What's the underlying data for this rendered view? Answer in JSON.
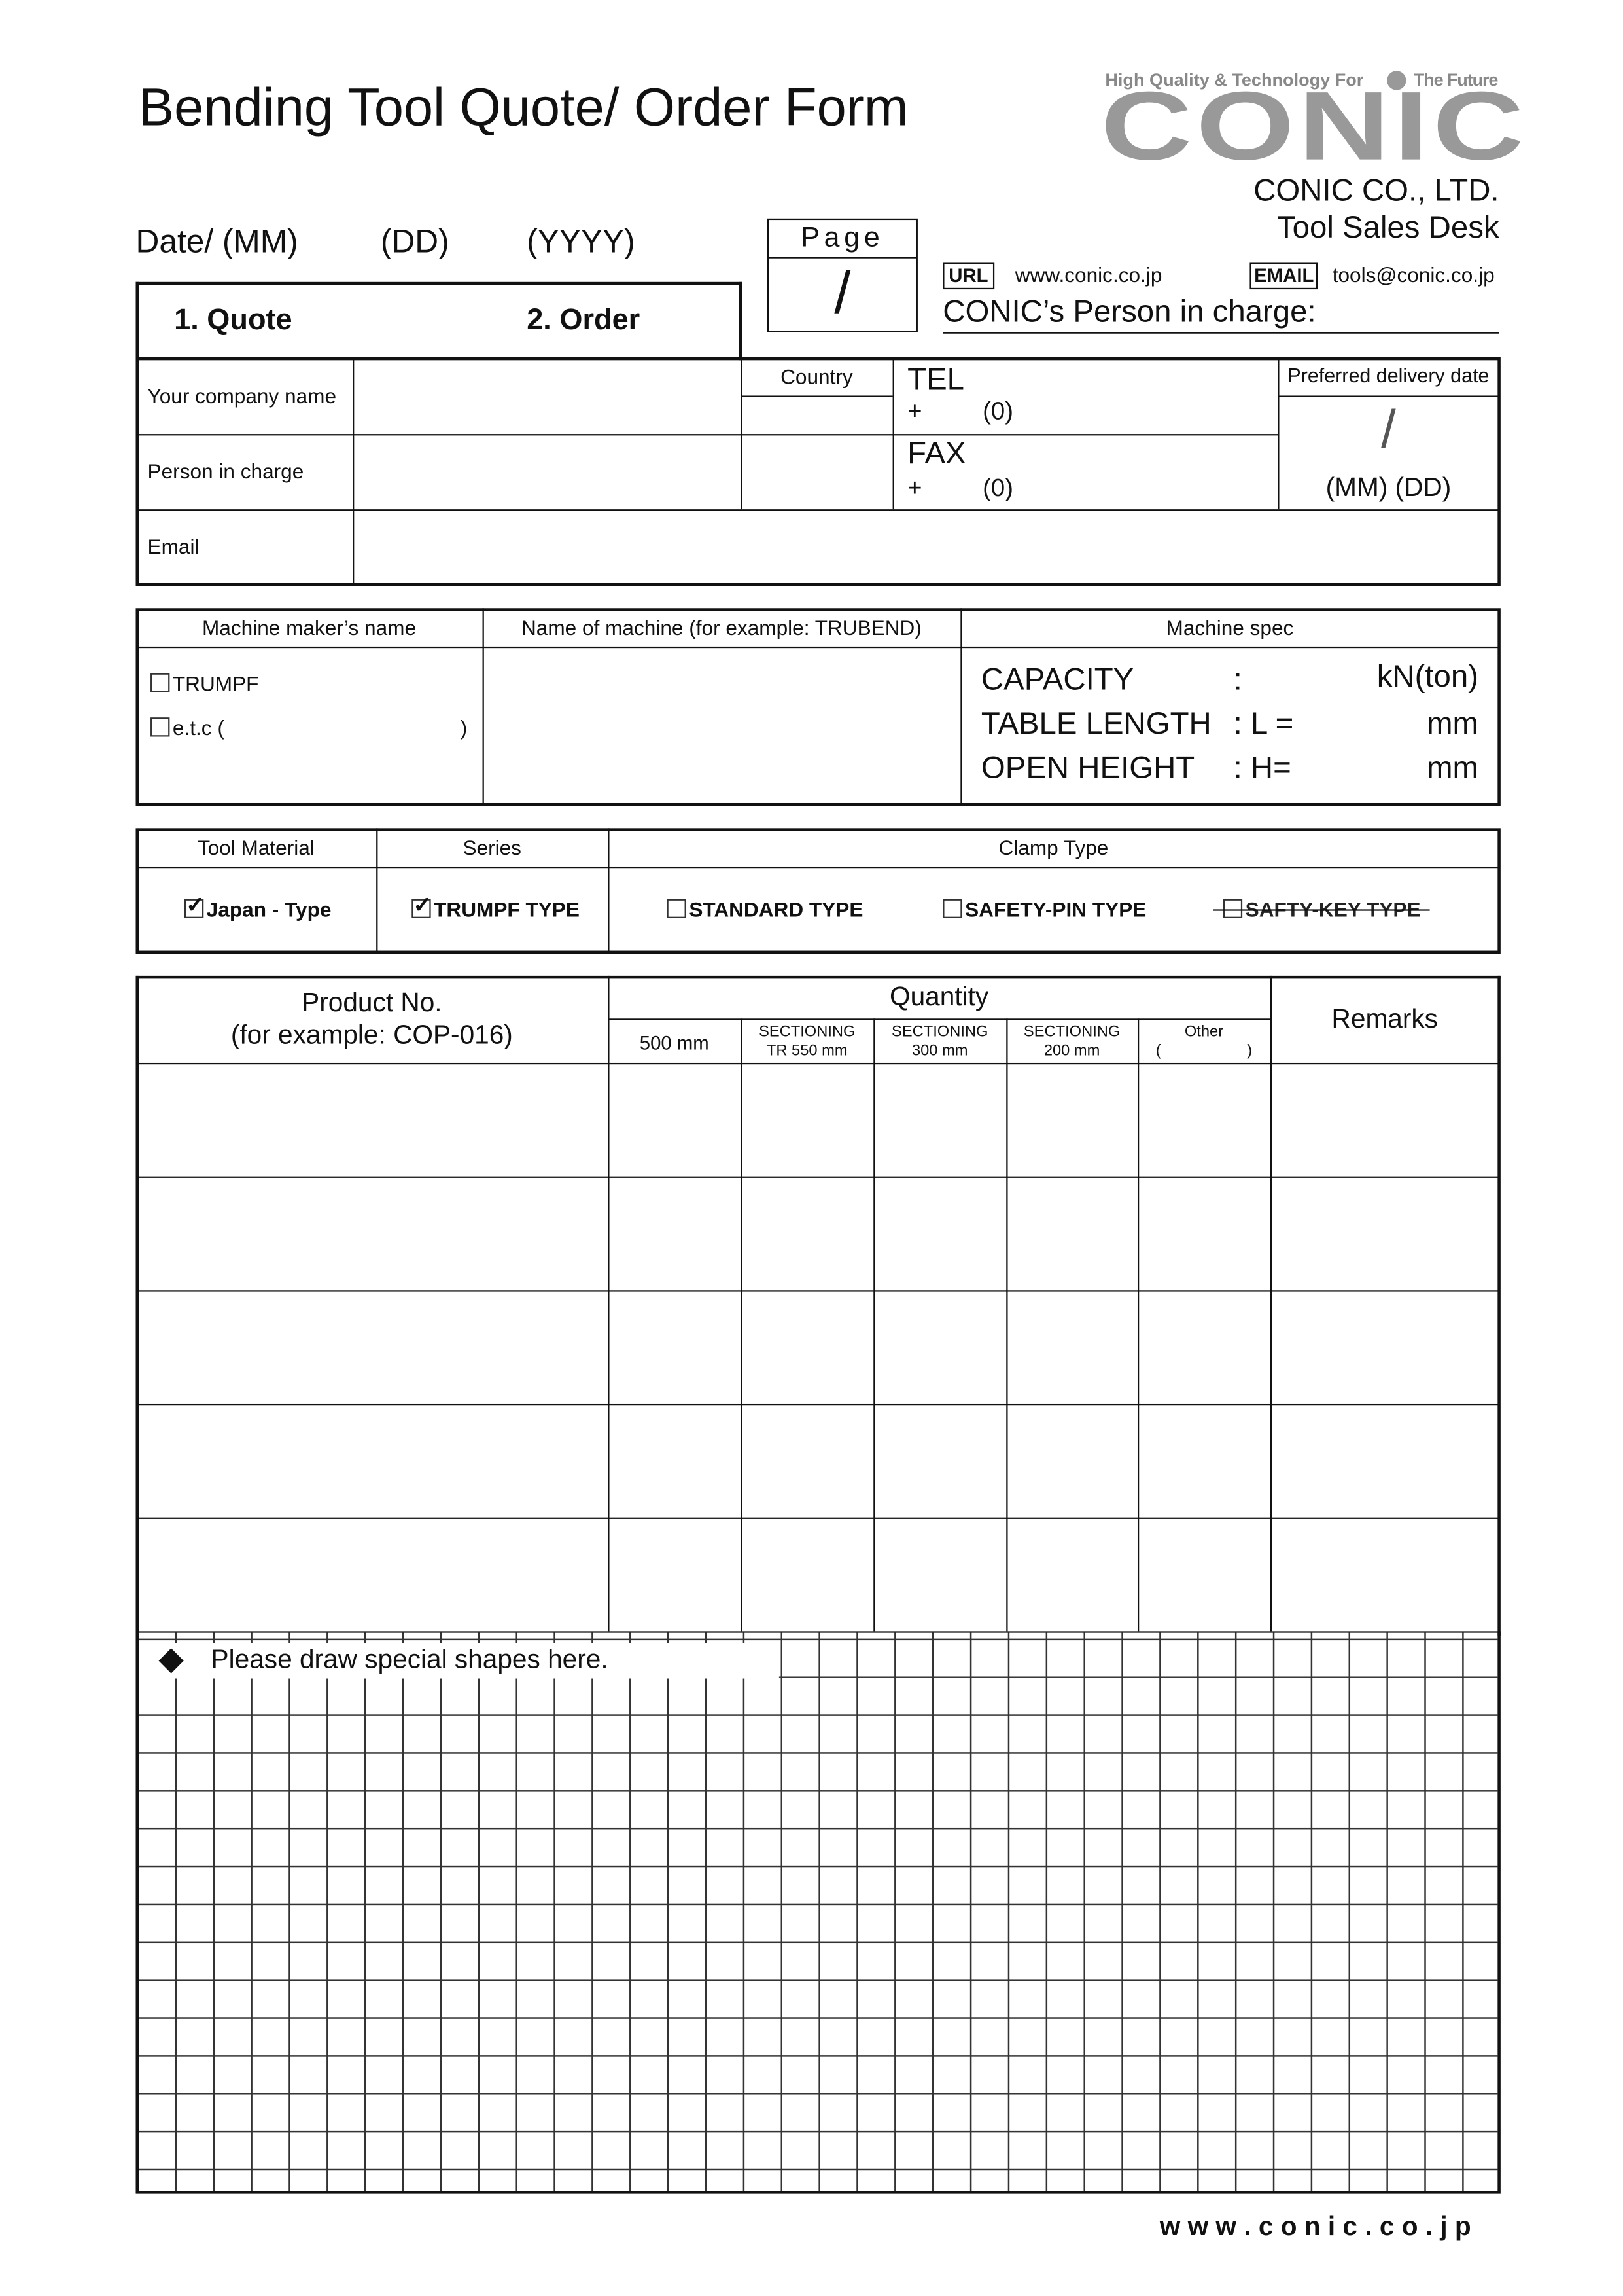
{
  "header": {
    "title": "Bending Tool Quote/ Order Form",
    "date_label": "Date/ (MM)",
    "date_dd": "(DD)",
    "date_yyyy": "(YYYY)",
    "page_label": "Page",
    "page_sep": "/"
  },
  "logo": {
    "tagline_left": "High Quality & Technology For",
    "tagline_right": "The Future",
    "wordmark": "CONIC",
    "color": "#999999"
  },
  "company": {
    "name": "CONIC CO., LTD.",
    "desk": "Tool Sales Desk",
    "url_label": "URL",
    "url": "www.conic.co.jp",
    "email_label": "EMAIL",
    "email": "tools@conic.co.jp",
    "person_label": "CONIC’s Person in charge:"
  },
  "form_type": {
    "quote": "1. Quote",
    "order": "2. Order"
  },
  "customer": {
    "company_label": "Your company name",
    "person_label": "Person in charge",
    "email_label": "Email",
    "country_label": "Country",
    "tel_label": "TEL",
    "tel_prefix": "+",
    "tel_code": "(0)",
    "fax_label": "FAX",
    "fax_prefix": "+",
    "fax_code": "(0)",
    "delivery_label": "Preferred delivery date",
    "delivery_sep": "/",
    "delivery_format": "(MM) (DD)"
  },
  "machine": {
    "maker_header": "Machine maker’s name",
    "name_header": "Name of machine (for example: TRUBEND)",
    "spec_header": "Machine spec",
    "maker_options": [
      {
        "label": "TRUMPF",
        "checked": false
      },
      {
        "label": "e.t.c (",
        "checked": false
      }
    ],
    "etc_close": ")",
    "spec": [
      {
        "label": "CAPACITY",
        "sep": ":",
        "unit": "kN(ton)"
      },
      {
        "label": "TABLE LENGTH",
        "sep": ": L =",
        "unit": "mm"
      },
      {
        "label": "OPEN HEIGHT",
        "sep": ": H=",
        "unit": "mm"
      }
    ]
  },
  "tooling": {
    "material_header": "Tool Material",
    "series_header": "Series",
    "clamp_header": "Clamp Type",
    "material": {
      "label": "Japan - Type",
      "checked": true
    },
    "series": {
      "label": "TRUMPF TYPE",
      "checked": true
    },
    "clamps": [
      {
        "label": "STANDARD TYPE",
        "checked": false
      },
      {
        "label": "SAFETY-PIN TYPE",
        "checked": false
      },
      {
        "label": "SAFTY-KEY TYPE",
        "checked": false,
        "struck": true
      }
    ]
  },
  "products": {
    "product_header": "Product No.",
    "product_example": "(for example: COP-016)",
    "quantity_header": "Quantity",
    "remarks_header": "Remarks",
    "qty_cols": [
      [
        "500 mm",
        ""
      ],
      [
        "SECTIONING",
        "TR 550 mm"
      ],
      [
        "SECTIONING",
        "300 mm"
      ],
      [
        "SECTIONING",
        "200 mm"
      ],
      [
        "Other",
        "(                    )"
      ]
    ],
    "rows": 5
  },
  "drawing": {
    "note": "Please draw special shapes here."
  },
  "footer": {
    "url": "w w w . c o n i c . c o . j p"
  }
}
